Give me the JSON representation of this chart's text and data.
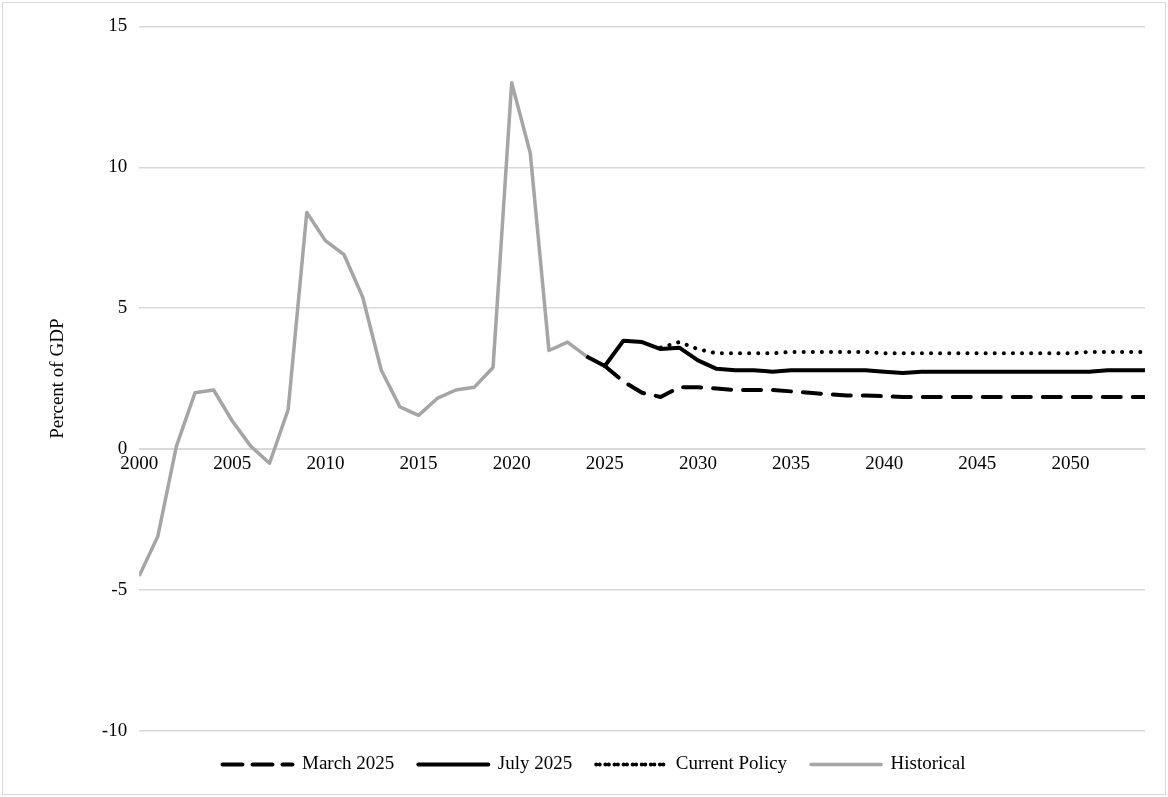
{
  "chart_data": {
    "type": "line",
    "ylabel": "Percent of GDP",
    "xlim": [
      2000,
      2054
    ],
    "xticks": [
      2000,
      2005,
      2010,
      2015,
      2020,
      2025,
      2030,
      2035,
      2040,
      2045,
      2050
    ],
    "ylim": [
      -10,
      15
    ],
    "yticks": [
      -10,
      -5,
      0,
      5,
      10,
      15
    ],
    "grid": "y",
    "legend": "bottom",
    "marker": "none",
    "series": [
      {
        "name": "March 2025",
        "color": "#000000",
        "line_style": "dashed",
        "x": [
          2025,
          2026,
          2027,
          2028,
          2029,
          2030,
          2031,
          2032,
          2033,
          2034,
          2035,
          2036,
          2037,
          2038,
          2039,
          2040,
          2041,
          2042,
          2043,
          2044,
          2045,
          2046,
          2047,
          2048,
          2049,
          2050,
          2051,
          2052,
          2053,
          2054
        ],
        "values": [
          2.95,
          2.4,
          2.0,
          1.85,
          2.2,
          2.2,
          2.15,
          2.1,
          2.1,
          2.1,
          2.05,
          2.0,
          1.95,
          1.9,
          1.9,
          1.88,
          1.85,
          1.85,
          1.85,
          1.85,
          1.85,
          1.85,
          1.85,
          1.85,
          1.85,
          1.85,
          1.85,
          1.85,
          1.85,
          1.85
        ]
      },
      {
        "name": "July 2025",
        "color": "#000000",
        "line_style": "solid",
        "x": [
          2024,
          2025,
          2026,
          2027,
          2028,
          2029,
          2030,
          2031,
          2032,
          2033,
          2034,
          2035,
          2036,
          2037,
          2038,
          2039,
          2040,
          2041,
          2042,
          2043,
          2044,
          2045,
          2046,
          2047,
          2048,
          2049,
          2050,
          2051,
          2052,
          2053,
          2054
        ],
        "values": [
          3.3,
          2.95,
          3.85,
          3.8,
          3.55,
          3.6,
          3.15,
          2.85,
          2.8,
          2.8,
          2.75,
          2.8,
          2.8,
          2.8,
          2.8,
          2.8,
          2.75,
          2.7,
          2.75,
          2.75,
          2.75,
          2.75,
          2.75,
          2.75,
          2.75,
          2.75,
          2.75,
          2.75,
          2.8,
          2.8,
          2.8
        ]
      },
      {
        "name": "Current Policy",
        "color": "#000000",
        "line_style": "dotted",
        "x": [
          2028,
          2029,
          2030,
          2031,
          2032,
          2033,
          2034,
          2035,
          2036,
          2037,
          2038,
          2039,
          2040,
          2041,
          2042,
          2043,
          2044,
          2045,
          2046,
          2047,
          2048,
          2049,
          2050,
          2051,
          2052,
          2053,
          2054
        ],
        "values": [
          3.6,
          3.8,
          3.55,
          3.4,
          3.4,
          3.4,
          3.4,
          3.45,
          3.45,
          3.45,
          3.45,
          3.45,
          3.4,
          3.4,
          3.4,
          3.4,
          3.4,
          3.4,
          3.4,
          3.4,
          3.4,
          3.4,
          3.4,
          3.45,
          3.45,
          3.45,
          3.45
        ]
      },
      {
        "name": "Historical",
        "color": "#a5a5a5",
        "line_style": "solid",
        "x": [
          2000,
          2001,
          2002,
          2003,
          2004,
          2005,
          2006,
          2007,
          2008,
          2009,
          2010,
          2011,
          2012,
          2013,
          2014,
          2015,
          2016,
          2017,
          2018,
          2019,
          2020,
          2021,
          2022,
          2023,
          2024
        ],
        "values": [
          -4.5,
          -3.1,
          0.1,
          2.0,
          2.1,
          1.0,
          0.1,
          -0.5,
          1.4,
          8.4,
          7.4,
          6.9,
          5.4,
          2.8,
          1.5,
          1.2,
          1.8,
          2.1,
          2.2,
          2.9,
          13.0,
          10.5,
          3.5,
          3.8,
          3.3
        ]
      }
    ]
  }
}
